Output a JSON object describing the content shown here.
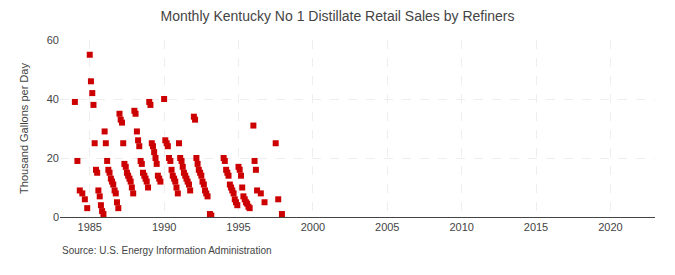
{
  "chart_data": {
    "type": "scatter",
    "title": "Monthly Kentucky No 1 Distillate Retail Sales by Refiners",
    "ylabel": "Thousand Gallons per Day",
    "annotations": [
      "Source: U.S. Energy Information Administration"
    ],
    "color": "#cc0000",
    "marker": "square",
    "grid": true,
    "xlim": [
      1983.0,
      2023.0
    ],
    "ylim": [
      0,
      60
    ],
    "xticks": [
      1985,
      1990,
      1995,
      2000,
      2005,
      2010,
      2015,
      2020
    ],
    "yticks": [
      0,
      20,
      40,
      60
    ],
    "x": [
      1984.0,
      1984.17,
      1984.33,
      1984.5,
      1984.67,
      1984.83,
      1985.0,
      1985.08,
      1985.17,
      1985.25,
      1985.33,
      1985.42,
      1985.5,
      1985.58,
      1985.67,
      1985.75,
      1985.83,
      1985.92,
      1986.0,
      1986.08,
      1986.17,
      1986.25,
      1986.33,
      1986.42,
      1986.5,
      1986.58,
      1986.67,
      1986.75,
      1986.83,
      1986.92,
      1987.0,
      1987.08,
      1987.17,
      1987.25,
      1987.33,
      1987.42,
      1987.5,
      1987.58,
      1987.67,
      1987.75,
      1987.83,
      1987.92,
      1988.0,
      1988.08,
      1988.17,
      1988.25,
      1988.33,
      1988.42,
      1988.5,
      1988.58,
      1988.67,
      1988.75,
      1988.83,
      1988.92,
      1989.0,
      1989.08,
      1989.17,
      1989.25,
      1989.33,
      1989.42,
      1989.5,
      1989.58,
      1989.67,
      1989.75,
      1990.0,
      1990.08,
      1990.17,
      1990.25,
      1990.33,
      1990.42,
      1990.5,
      1990.58,
      1990.67,
      1990.75,
      1990.83,
      1990.92,
      1991.0,
      1991.08,
      1991.17,
      1991.25,
      1991.33,
      1991.42,
      1991.5,
      1991.58,
      1991.67,
      1991.75,
      1992.0,
      1992.08,
      1992.17,
      1992.25,
      1992.33,
      1992.42,
      1992.5,
      1992.58,
      1992.67,
      1992.75,
      1992.83,
      1992.92,
      1993.08,
      1993.17,
      1994.0,
      1994.08,
      1994.17,
      1994.25,
      1994.33,
      1994.42,
      1994.5,
      1994.58,
      1994.67,
      1994.75,
      1994.83,
      1994.92,
      1995.0,
      1995.08,
      1995.17,
      1995.25,
      1995.33,
      1995.42,
      1995.5,
      1995.58,
      1995.67,
      1995.75,
      1996.0,
      1996.08,
      1996.17,
      1996.25,
      1996.5,
      1996.75,
      1997.5,
      1997.67,
      1997.92
    ],
    "values": [
      39.0,
      19.0,
      9.0,
      8.0,
      6.0,
      3.0,
      55.0,
      46.0,
      42.0,
      38.0,
      25.0,
      16.0,
      15.0,
      9.0,
      7.0,
      4.0,
      2.0,
      1.0,
      29.0,
      25.0,
      19.0,
      16.0,
      15.0,
      13.0,
      12.0,
      11.0,
      9.0,
      8.0,
      5.0,
      3.0,
      35.0,
      33.0,
      32.0,
      25.0,
      18.0,
      17.0,
      15.0,
      14.0,
      13.0,
      12.0,
      10.0,
      8.0,
      36.0,
      35.0,
      29.0,
      26.0,
      24.0,
      19.0,
      18.0,
      15.0,
      14.0,
      13.0,
      12.0,
      10.0,
      39.0,
      38.0,
      25.0,
      24.0,
      22.0,
      20.0,
      18.0,
      14.0,
      13.0,
      12.0,
      40.0,
      26.0,
      25.0,
      24.0,
      20.0,
      19.0,
      16.0,
      14.0,
      13.0,
      12.0,
      10.0,
      8.0,
      25.0,
      20.0,
      19.0,
      17.0,
      15.0,
      14.0,
      13.0,
      12.0,
      11.0,
      9.0,
      34.0,
      33.0,
      20.0,
      18.0,
      16.0,
      15.0,
      14.0,
      12.0,
      11.0,
      9.0,
      8.0,
      7.0,
      1.0,
      0.5,
      20.0,
      19.0,
      16.0,
      15.0,
      14.0,
      11.0,
      10.0,
      9.0,
      8.0,
      6.0,
      5.0,
      4.0,
      17.0,
      16.0,
      14.0,
      10.0,
      7.0,
      6.0,
      5.0,
      4.5,
      3.5,
      3.0,
      31.0,
      19.0,
      16.0,
      9.0,
      8.0,
      5.0,
      25.0,
      6.0,
      1.0
    ]
  }
}
